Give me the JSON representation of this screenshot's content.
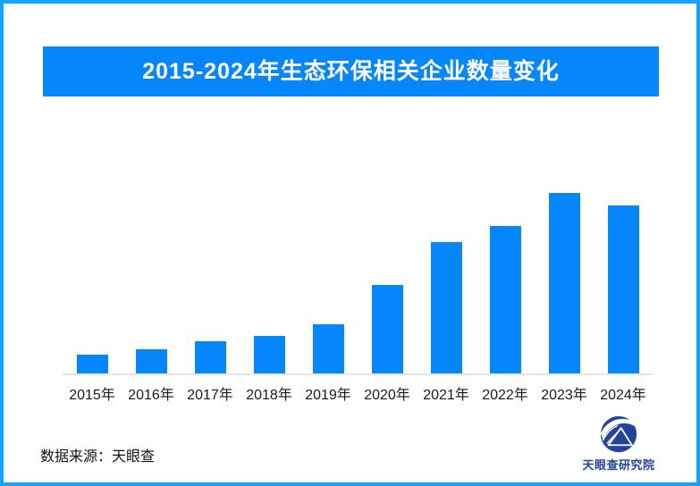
{
  "frame": {
    "border_color": "#14a3fe",
    "background_color": "#ffffff"
  },
  "title_banner": {
    "text": "2015-2024年生态环保相关企业数量变化",
    "bg_color": "#0587fb",
    "text_color": "#ffffff"
  },
  "chart_data": {
    "type": "bar",
    "title": "2015-2024年生态环保相关企业数量变化",
    "categories": [
      "2015年",
      "2016年",
      "2017年",
      "2018年",
      "2019年",
      "2020年",
      "2021年",
      "2022年",
      "2023年",
      "2024年"
    ],
    "values_relative_pct_of_max": [
      10.5,
      13.5,
      17.7,
      20.8,
      27.1,
      48.9,
      72.9,
      81.8,
      100,
      93.1
    ],
    "xlabel": "",
    "ylabel": "",
    "y_axis_shown": false,
    "value_labels_shown": false,
    "grid": false,
    "legend": false,
    "bar_color": "#0587fb",
    "axis_line_color": "#e6e6e6",
    "tick_label_color": "#1a1a1a"
  },
  "footer": {
    "source_text": "数据来源：天眼查",
    "logo_text": "天眼查研究院",
    "logo_color": "#24439a"
  }
}
